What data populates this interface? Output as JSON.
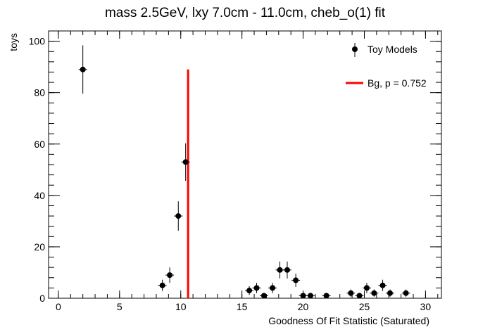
{
  "chart_data": {
    "type": "scatter",
    "title": "mass 2.5GeV, lxy 7.0cm - 11.0cm, cheb_o(1) fit",
    "xlabel": "Goodness Of Fit Statistic (Saturated)",
    "ylabel": "toys",
    "xlim": [
      -0.8,
      31.3
    ],
    "ylim": [
      0,
      104
    ],
    "x_ticks": [
      0,
      5,
      10,
      15,
      20,
      25,
      30
    ],
    "y_ticks": [
      0,
      20,
      40,
      60,
      80,
      100
    ],
    "grid": false,
    "legend_position": "top-right",
    "series": [
      {
        "name": "Toy Models",
        "color": "#000000",
        "points": [
          {
            "x": 2.0,
            "y": 89,
            "err": 9.4
          },
          {
            "x": 8.5,
            "y": 5,
            "err": 2.2
          },
          {
            "x": 9.1,
            "y": 9,
            "err": 3.0
          },
          {
            "x": 9.8,
            "y": 32,
            "err": 5.7
          },
          {
            "x": 10.4,
            "y": 53,
            "err": 7.3
          },
          {
            "x": 15.6,
            "y": 3,
            "err": 1.7
          },
          {
            "x": 16.2,
            "y": 4,
            "err": 2.0
          },
          {
            "x": 16.8,
            "y": 1,
            "err": 1.0
          },
          {
            "x": 17.5,
            "y": 4,
            "err": 2.0
          },
          {
            "x": 18.1,
            "y": 11,
            "err": 3.3
          },
          {
            "x": 18.7,
            "y": 11,
            "err": 3.3
          },
          {
            "x": 19.4,
            "y": 7,
            "err": 2.6
          },
          {
            "x": 20.0,
            "y": 1,
            "err": 1.0
          },
          {
            "x": 20.6,
            "y": 1,
            "err": 1.0
          },
          {
            "x": 21.9,
            "y": 1,
            "err": 1.0
          },
          {
            "x": 23.9,
            "y": 2,
            "err": 1.4
          },
          {
            "x": 24.6,
            "y": 1,
            "err": 1.0
          },
          {
            "x": 25.2,
            "y": 4,
            "err": 2.0
          },
          {
            "x": 25.8,
            "y": 2,
            "err": 1.4
          },
          {
            "x": 26.5,
            "y": 5,
            "err": 2.2
          },
          {
            "x": 27.1,
            "y": 2,
            "err": 1.4
          },
          {
            "x": 28.4,
            "y": 2,
            "err": 1.4
          }
        ]
      }
    ],
    "reference_line": {
      "name": "Bg, p = 0.752",
      "color": "#ff0000",
      "x": 10.6,
      "y_top": 89
    }
  }
}
